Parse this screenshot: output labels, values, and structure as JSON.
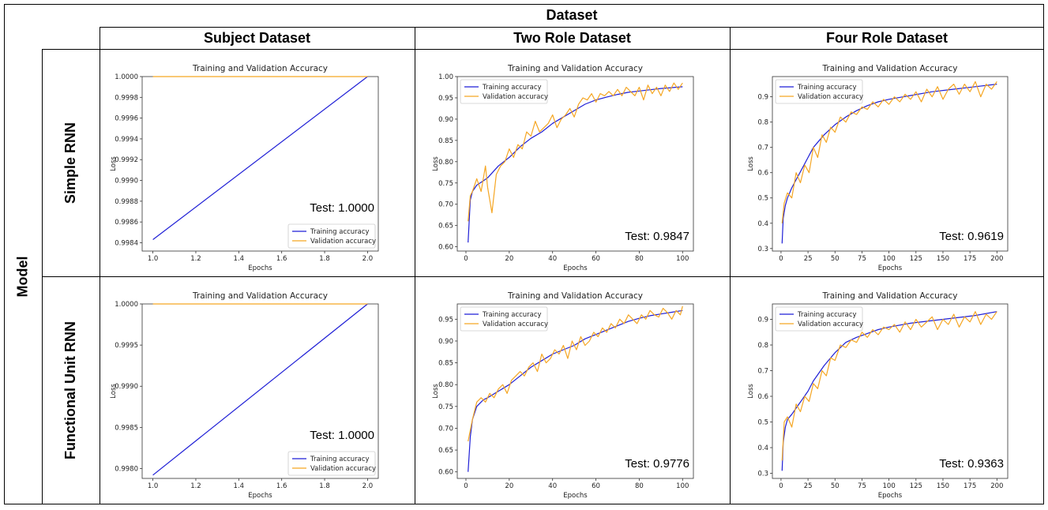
{
  "table": {
    "dataset_header": "Dataset",
    "model_header": "Model",
    "columns": [
      "Subject Dataset",
      "Two Role Dataset",
      "Four Role Dataset"
    ],
    "rows": [
      "Simple RNN",
      "Functional Unit RNN"
    ]
  },
  "colors": {
    "training": "#1f1fd6",
    "validation": "#f5a623"
  },
  "chart_data": [
    {
      "type": "line",
      "row": "Simple RNN",
      "column": "Subject Dataset",
      "title": "Training and Validation Accuracy",
      "xlabel": "Epochs",
      "ylabel": "Loss",
      "xlim": [
        0.95,
        2.05
      ],
      "ylim": [
        0.99832,
        1.0
      ],
      "xticks": [
        1.0,
        1.2,
        1.4,
        1.6,
        1.8,
        2.0
      ],
      "xtick_labels": [
        "1.0",
        "1.2",
        "1.4",
        "1.6",
        "1.8",
        "2.0"
      ],
      "yticks": [
        0.9984,
        0.9986,
        0.9988,
        0.999,
        0.9992,
        0.9994,
        0.9996,
        0.9998,
        1.0
      ],
      "ytick_labels": [
        "0.9984",
        "0.9986",
        "0.9988",
        "0.9990",
        "0.9992",
        "0.9994",
        "0.9996",
        "0.9998",
        "1.0000"
      ],
      "legend": "lower-right",
      "test_label": "Test: 1.0000",
      "series": [
        {
          "name": "Training accuracy",
          "x": [
            1,
            2
          ],
          "y": [
            0.99843,
            1.0
          ]
        },
        {
          "name": "Validation accuracy",
          "x": [
            1,
            2
          ],
          "y": [
            1.0,
            1.0
          ]
        }
      ]
    },
    {
      "type": "line",
      "row": "Simple RNN",
      "column": "Two Role Dataset",
      "title": "Training and Validation Accuracy",
      "xlabel": "Epochs",
      "ylabel": "Loss",
      "xlim": [
        -4,
        105
      ],
      "ylim": [
        0.59,
        1.0
      ],
      "xticks": [
        0,
        20,
        40,
        60,
        80,
        100
      ],
      "xtick_labels": [
        "0",
        "20",
        "40",
        "60",
        "80",
        "100"
      ],
      "yticks": [
        0.6,
        0.65,
        0.7,
        0.75,
        0.8,
        0.85,
        0.9,
        0.95,
        1.0
      ],
      "ytick_labels": [
        "0.60",
        "0.65",
        "0.70",
        "0.75",
        "0.80",
        "0.85",
        "0.90",
        "0.95",
        "1.00"
      ],
      "legend": "top-left",
      "test_label": "Test: 0.9847",
      "series": [
        {
          "name": "Training accuracy",
          "x": [
            1,
            2,
            3,
            5,
            8,
            10,
            15,
            20,
            25,
            30,
            35,
            40,
            45,
            50,
            55,
            60,
            65,
            70,
            75,
            80,
            85,
            90,
            95,
            100
          ],
          "y": [
            0.61,
            0.71,
            0.73,
            0.745,
            0.755,
            0.762,
            0.79,
            0.81,
            0.835,
            0.855,
            0.87,
            0.89,
            0.905,
            0.92,
            0.935,
            0.945,
            0.952,
            0.958,
            0.963,
            0.966,
            0.969,
            0.972,
            0.974,
            0.976
          ]
        },
        {
          "name": "Validation accuracy",
          "x": [
            1,
            2,
            3,
            5,
            7,
            9,
            10,
            12,
            14,
            16,
            18,
            20,
            22,
            24,
            26,
            28,
            30,
            32,
            34,
            36,
            38,
            40,
            42,
            44,
            46,
            48,
            50,
            52,
            54,
            56,
            58,
            60,
            62,
            64,
            66,
            68,
            70,
            72,
            74,
            76,
            78,
            80,
            82,
            84,
            86,
            88,
            90,
            92,
            94,
            96,
            98,
            100
          ],
          "y": [
            0.66,
            0.72,
            0.73,
            0.76,
            0.73,
            0.79,
            0.74,
            0.68,
            0.77,
            0.79,
            0.8,
            0.83,
            0.81,
            0.84,
            0.83,
            0.87,
            0.86,
            0.895,
            0.87,
            0.88,
            0.89,
            0.91,
            0.88,
            0.9,
            0.91,
            0.925,
            0.905,
            0.935,
            0.95,
            0.945,
            0.96,
            0.94,
            0.96,
            0.955,
            0.965,
            0.955,
            0.97,
            0.955,
            0.975,
            0.965,
            0.955,
            0.975,
            0.945,
            0.98,
            0.96,
            0.975,
            0.955,
            0.98,
            0.965,
            0.985,
            0.97,
            0.985
          ]
        }
      ]
    },
    {
      "type": "line",
      "row": "Simple RNN",
      "column": "Four Role Dataset",
      "title": "Training and Validation Accuracy",
      "xlabel": "Epochs",
      "ylabel": "Loss",
      "xlim": [
        -8,
        210
      ],
      "ylim": [
        0.29,
        0.98
      ],
      "xticks": [
        0,
        25,
        50,
        75,
        100,
        125,
        150,
        175,
        200
      ],
      "xtick_labels": [
        "0",
        "25",
        "50",
        "75",
        "100",
        "125",
        "150",
        "175",
        "200"
      ],
      "yticks": [
        0.3,
        0.4,
        0.5,
        0.6,
        0.7,
        0.8,
        0.9
      ],
      "ytick_labels": [
        "0.3",
        "0.4",
        "0.5",
        "0.6",
        "0.7",
        "0.8",
        "0.9"
      ],
      "legend": "top-left",
      "test_label": "Test: 0.9619",
      "series": [
        {
          "name": "Training accuracy",
          "x": [
            1,
            2,
            4,
            6,
            10,
            15,
            20,
            25,
            30,
            40,
            50,
            60,
            70,
            80,
            90,
            100,
            120,
            140,
            160,
            180,
            200
          ],
          "y": [
            0.32,
            0.42,
            0.47,
            0.5,
            0.54,
            0.58,
            0.62,
            0.66,
            0.7,
            0.75,
            0.79,
            0.82,
            0.845,
            0.865,
            0.88,
            0.89,
            0.905,
            0.92,
            0.93,
            0.94,
            0.95
          ]
        },
        {
          "name": "Validation accuracy",
          "x": [
            1,
            3,
            6,
            10,
            14,
            18,
            22,
            26,
            30,
            34,
            38,
            42,
            46,
            50,
            55,
            60,
            65,
            70,
            75,
            80,
            85,
            90,
            95,
            100,
            105,
            110,
            115,
            120,
            125,
            130,
            135,
            140,
            145,
            150,
            155,
            160,
            165,
            170,
            175,
            180,
            185,
            190,
            195,
            200
          ],
          "y": [
            0.4,
            0.48,
            0.52,
            0.5,
            0.6,
            0.56,
            0.63,
            0.6,
            0.7,
            0.66,
            0.75,
            0.72,
            0.78,
            0.76,
            0.82,
            0.8,
            0.84,
            0.83,
            0.86,
            0.85,
            0.88,
            0.86,
            0.89,
            0.87,
            0.9,
            0.88,
            0.91,
            0.89,
            0.92,
            0.88,
            0.93,
            0.9,
            0.94,
            0.89,
            0.93,
            0.95,
            0.91,
            0.95,
            0.92,
            0.96,
            0.9,
            0.95,
            0.93,
            0.96
          ]
        }
      ]
    },
    {
      "type": "line",
      "row": "Functional Unit RNN",
      "column": "Subject Dataset",
      "title": "Training and Validation Accuracy",
      "xlabel": "Epochs",
      "ylabel": "Loss",
      "xlim": [
        0.95,
        2.05
      ],
      "ylim": [
        0.99788,
        1.0
      ],
      "xticks": [
        1.0,
        1.2,
        1.4,
        1.6,
        1.8,
        2.0
      ],
      "xtick_labels": [
        "1.0",
        "1.2",
        "1.4",
        "1.6",
        "1.8",
        "2.0"
      ],
      "yticks": [
        0.998,
        0.9985,
        0.999,
        0.9995,
        1.0
      ],
      "ytick_labels": [
        "0.9980",
        "0.9985",
        "0.9990",
        "0.9995",
        "1.0000"
      ],
      "legend": "lower-right",
      "test_label": "Test: 1.0000",
      "series": [
        {
          "name": "Training accuracy",
          "x": [
            1,
            2
          ],
          "y": [
            0.99792,
            1.0
          ]
        },
        {
          "name": "Validation accuracy",
          "x": [
            1,
            2
          ],
          "y": [
            1.0,
            1.0
          ]
        }
      ]
    },
    {
      "type": "line",
      "row": "Functional Unit RNN",
      "column": "Two Role Dataset",
      "title": "Training and Validation Accuracy",
      "xlabel": "Epochs",
      "ylabel": "Loss",
      "xlim": [
        -4,
        105
      ],
      "ylim": [
        0.585,
        0.985
      ],
      "xticks": [
        0,
        20,
        40,
        60,
        80,
        100
      ],
      "xtick_labels": [
        "0",
        "20",
        "40",
        "60",
        "80",
        "100"
      ],
      "yticks": [
        0.6,
        0.65,
        0.7,
        0.75,
        0.8,
        0.85,
        0.9,
        0.95
      ],
      "ytick_labels": [
        "0.60",
        "0.65",
        "0.70",
        "0.75",
        "0.80",
        "0.85",
        "0.90",
        "0.95"
      ],
      "legend": "top-left",
      "test_label": "Test: 0.9776",
      "series": [
        {
          "name": "Training accuracy",
          "x": [
            1,
            2,
            3,
            5,
            8,
            10,
            15,
            20,
            25,
            30,
            35,
            40,
            45,
            50,
            55,
            60,
            65,
            70,
            75,
            80,
            85,
            90,
            95,
            100
          ],
          "y": [
            0.6,
            0.68,
            0.72,
            0.75,
            0.765,
            0.77,
            0.785,
            0.8,
            0.82,
            0.84,
            0.855,
            0.87,
            0.88,
            0.89,
            0.905,
            0.915,
            0.925,
            0.935,
            0.945,
            0.952,
            0.958,
            0.962,
            0.966,
            0.97
          ]
        },
        {
          "name": "Validation accuracy",
          "x": [
            1,
            3,
            5,
            7,
            9,
            11,
            13,
            15,
            17,
            19,
            21,
            23,
            25,
            27,
            29,
            31,
            33,
            35,
            37,
            39,
            41,
            43,
            45,
            47,
            49,
            51,
            53,
            55,
            57,
            59,
            61,
            63,
            65,
            67,
            69,
            71,
            73,
            75,
            77,
            79,
            81,
            83,
            85,
            87,
            89,
            91,
            93,
            95,
            97,
            99,
            100
          ],
          "y": [
            0.67,
            0.72,
            0.76,
            0.77,
            0.76,
            0.78,
            0.77,
            0.79,
            0.8,
            0.78,
            0.81,
            0.82,
            0.83,
            0.82,
            0.84,
            0.85,
            0.83,
            0.87,
            0.85,
            0.86,
            0.88,
            0.87,
            0.89,
            0.86,
            0.9,
            0.88,
            0.91,
            0.89,
            0.9,
            0.92,
            0.91,
            0.93,
            0.92,
            0.94,
            0.93,
            0.95,
            0.94,
            0.96,
            0.95,
            0.94,
            0.96,
            0.95,
            0.97,
            0.96,
            0.955,
            0.975,
            0.965,
            0.95,
            0.97,
            0.96,
            0.98
          ]
        }
      ]
    },
    {
      "type": "line",
      "row": "Functional Unit RNN",
      "column": "Four Role Dataset",
      "title": "Training and Validation Accuracy",
      "xlabel": "Epochs",
      "ylabel": "Loss",
      "xlim": [
        -8,
        210
      ],
      "ylim": [
        0.28,
        0.96
      ],
      "xticks": [
        0,
        25,
        50,
        75,
        100,
        125,
        150,
        175,
        200
      ],
      "xtick_labels": [
        "0",
        "25",
        "50",
        "75",
        "100",
        "125",
        "150",
        "175",
        "200"
      ],
      "yticks": [
        0.3,
        0.4,
        0.5,
        0.6,
        0.7,
        0.8,
        0.9
      ],
      "ytick_labels": [
        "0.3",
        "0.4",
        "0.5",
        "0.6",
        "0.7",
        "0.8",
        "0.9"
      ],
      "legend": "top-left",
      "test_label": "Test: 0.9363",
      "series": [
        {
          "name": "Training accuracy",
          "x": [
            1,
            2,
            4,
            6,
            10,
            15,
            20,
            25,
            30,
            40,
            50,
            60,
            70,
            80,
            90,
            100,
            120,
            140,
            160,
            180,
            200
          ],
          "y": [
            0.31,
            0.42,
            0.48,
            0.51,
            0.53,
            0.56,
            0.59,
            0.62,
            0.66,
            0.72,
            0.77,
            0.81,
            0.83,
            0.845,
            0.86,
            0.87,
            0.885,
            0.895,
            0.905,
            0.915,
            0.93
          ]
        },
        {
          "name": "Validation accuracy",
          "x": [
            1,
            3,
            6,
            10,
            14,
            18,
            22,
            26,
            30,
            34,
            38,
            42,
            46,
            50,
            55,
            60,
            65,
            70,
            75,
            80,
            85,
            90,
            95,
            100,
            105,
            110,
            115,
            120,
            125,
            130,
            135,
            140,
            145,
            150,
            155,
            160,
            165,
            170,
            175,
            180,
            185,
            190,
            195,
            200
          ],
          "y": [
            0.35,
            0.5,
            0.52,
            0.48,
            0.57,
            0.54,
            0.6,
            0.58,
            0.65,
            0.63,
            0.7,
            0.68,
            0.75,
            0.74,
            0.8,
            0.79,
            0.82,
            0.81,
            0.85,
            0.83,
            0.86,
            0.84,
            0.87,
            0.86,
            0.88,
            0.85,
            0.89,
            0.86,
            0.9,
            0.87,
            0.89,
            0.91,
            0.86,
            0.9,
            0.88,
            0.92,
            0.87,
            0.91,
            0.89,
            0.93,
            0.88,
            0.92,
            0.9,
            0.93
          ]
        }
      ]
    }
  ]
}
